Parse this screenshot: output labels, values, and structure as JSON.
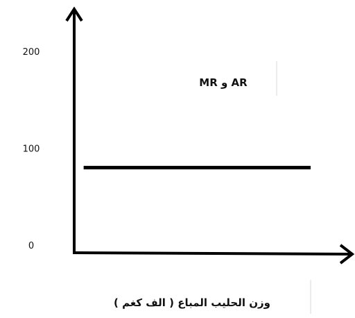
{
  "chart_data": {
    "type": "line",
    "title": "",
    "xlabel": "وزن الحليب المباع ( الف كغم )",
    "ylabel": "",
    "yticks": [
      {
        "value": 0,
        "label": "0"
      },
      {
        "value": 100,
        "label": "100"
      },
      {
        "value": 200,
        "label": "200"
      }
    ],
    "ylim": [
      0,
      200
    ],
    "grid": false,
    "series": [
      {
        "name": "AR و MR",
        "x": [
          0.04,
          1
        ],
        "values": [
          80,
          80
        ]
      }
    ],
    "colors": {
      "axis": "#000000",
      "line": "#000000",
      "divider": "#d9d9d9"
    }
  }
}
